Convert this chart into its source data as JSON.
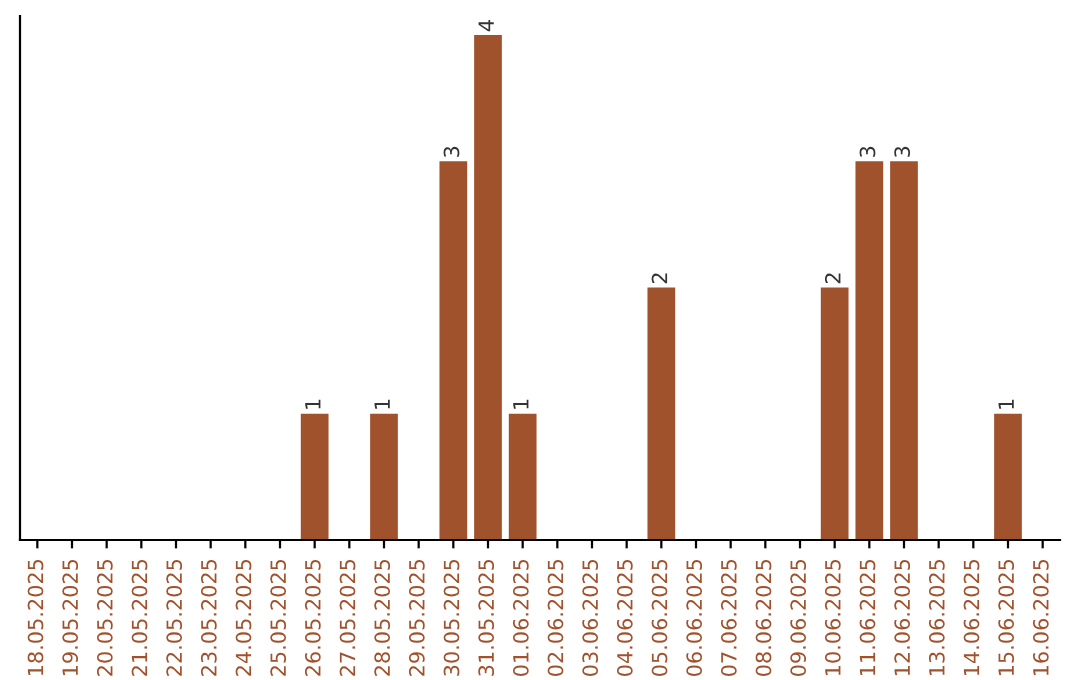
{
  "chart_data": {
    "type": "bar",
    "categories": [
      "18.05.2025",
      "19.05.2025",
      "20.05.2025",
      "21.05.2025",
      "22.05.2025",
      "23.05.2025",
      "24.05.2025",
      "25.05.2025",
      "26.05.2025",
      "27.05.2025",
      "28.05.2025",
      "29.05.2025",
      "30.05.2025",
      "31.05.2025",
      "01.06.2025",
      "02.06.2025",
      "03.06.2025",
      "04.06.2025",
      "05.06.2025",
      "06.06.2025",
      "07.06.2025",
      "08.06.2025",
      "09.06.2025",
      "10.06.2025",
      "11.06.2025",
      "12.06.2025",
      "13.06.2025",
      "14.06.2025",
      "15.06.2025",
      "16.06.2025"
    ],
    "values": [
      0,
      0,
      0,
      0,
      0,
      0,
      0,
      0,
      1,
      0,
      1,
      0,
      3,
      4,
      1,
      0,
      0,
      0,
      2,
      0,
      0,
      0,
      0,
      2,
      3,
      3,
      0,
      0,
      1,
      0
    ],
    "value_labels": [
      null,
      null,
      null,
      null,
      null,
      null,
      null,
      null,
      "1",
      null,
      "1",
      null,
      "3",
      "4",
      "1",
      null,
      null,
      null,
      "2",
      null,
      null,
      null,
      null,
      "2",
      "3",
      "3",
      null,
      null,
      "1",
      null
    ],
    "color": "#a0522d",
    "ylim": [
      0,
      4.15
    ],
    "tick_labels": "x",
    "grid": false,
    "legend": false
  }
}
